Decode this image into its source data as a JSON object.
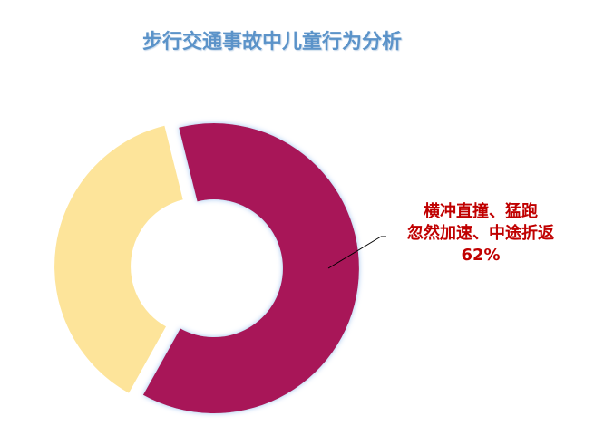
{
  "chart_data": {
    "type": "pie",
    "variant": "donut",
    "title": "步行交通事故中儿童行为分析",
    "slices": [
      {
        "label_lines": [
          "横冲直撞、猛跑",
          "忽然加速、中途折返"
        ],
        "value": 62,
        "value_label": "62%",
        "color": "#a81458"
      },
      {
        "value": 38,
        "color": "#fde49a"
      }
    ],
    "legend": "none",
    "title_color": "#5b93c9",
    "label_color": "#c00000"
  }
}
